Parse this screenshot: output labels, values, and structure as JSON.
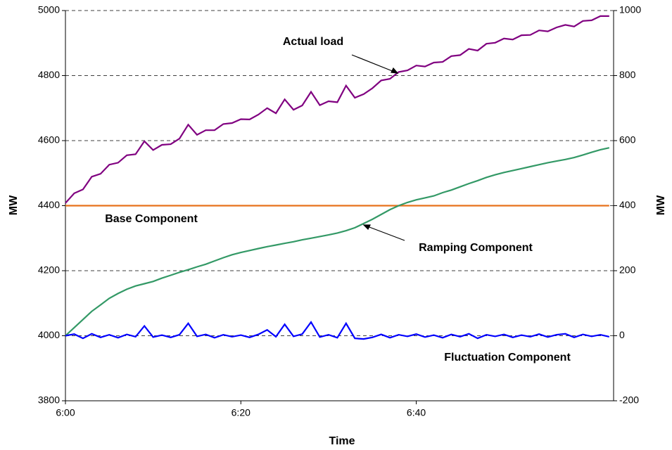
{
  "chart_data": {
    "type": "line",
    "x_label": "Time",
    "y_label": "MW",
    "y2_label": "MW",
    "x": [
      0,
      1,
      2,
      3,
      4,
      5,
      6,
      7,
      8,
      9,
      10,
      11,
      12,
      13,
      14,
      15,
      16,
      17,
      18,
      19,
      20,
      21,
      22,
      23,
      24,
      25,
      26,
      27,
      28,
      29,
      30,
      31,
      32,
      33,
      34,
      35,
      36,
      37,
      38,
      39,
      40,
      41,
      42,
      43,
      44,
      45,
      46,
      47,
      48,
      49,
      50,
      51,
      52,
      53,
      54,
      55,
      56,
      57,
      58,
      59,
      60,
      61,
      62
    ],
    "xlim": [
      0,
      62.5
    ],
    "xticks": [
      {
        "value": 0,
        "label": "6:00"
      },
      {
        "value": 20,
        "label": "6:20"
      },
      {
        "value": 40,
        "label": "6:40"
      }
    ],
    "ylim": [
      3800,
      5000
    ],
    "yticks": [
      3800,
      4000,
      4200,
      4400,
      4600,
      4800,
      5000
    ],
    "y2lim": [
      -200,
      1000
    ],
    "y2ticks": [
      -200,
      0,
      200,
      400,
      600,
      800,
      1000
    ],
    "grid": true,
    "series": [
      {
        "name": "Actual load",
        "color": "#800080",
        "values": [
          4408,
          4438,
          4450,
          4489,
          4498,
          4526,
          4532,
          4555,
          4558,
          4598,
          4571,
          4587,
          4589,
          4606,
          4649,
          4618,
          4632,
          4632,
          4651,
          4654,
          4666,
          4665,
          4680,
          4700,
          4684,
          4727,
          4695,
          4708,
          4750,
          4709,
          4721,
          4718,
          4769,
          4732,
          4743,
          4761,
          4785,
          4790,
          4811,
          4816,
          4831,
          4828,
          4840,
          4842,
          4860,
          4863,
          4882,
          4877,
          4898,
          4901,
          4914,
          4911,
          4924,
          4925,
          4939,
          4936,
          4948,
          4956,
          4951,
          4968,
          4970,
          4983,
          4983
        ]
      },
      {
        "name": "Base Component",
        "color": "#e8701a",
        "values": [
          4400,
          4400,
          4400,
          4400,
          4400,
          4400,
          4400,
          4400,
          4400,
          4400,
          4400,
          4400,
          4400,
          4400,
          4400,
          4400,
          4400,
          4400,
          4400,
          4400,
          4400,
          4400,
          4400,
          4400,
          4400,
          4400,
          4400,
          4400,
          4400,
          4400,
          4400,
          4400,
          4400,
          4400,
          4400,
          4400,
          4400,
          4400,
          4400,
          4400,
          4400,
          4400,
          4400,
          4400,
          4400,
          4400,
          4400,
          4400,
          4400,
          4400,
          4400,
          4400,
          4400,
          4400,
          4400,
          4400,
          4400,
          4400,
          4400,
          4400,
          4400,
          4400,
          4400
        ]
      },
      {
        "name": "Ramping Component",
        "color": "#339966",
        "axis": "y2",
        "values": [
          0,
          25,
          50,
          75,
          95,
          115,
          130,
          143,
          153,
          160,
          167,
          177,
          186,
          195,
          203,
          212,
          220,
          230,
          240,
          249,
          256,
          262,
          268,
          274,
          279,
          284,
          289,
          295,
          300,
          305,
          310,
          316,
          323,
          332,
          345,
          358,
          373,
          388,
          400,
          410,
          418,
          424,
          430,
          440,
          448,
          458,
          468,
          477,
          487,
          495,
          502,
          508,
          514,
          520,
          526,
          532,
          537,
          542,
          548,
          556,
          564,
          572,
          578
        ]
      },
      {
        "name": "Fluctuation Component",
        "color": "#0000ff",
        "axis": "y2",
        "values": [
          0,
          5,
          -8,
          6,
          -5,
          3,
          -6,
          4,
          -3,
          30,
          -4,
          2,
          -5,
          3,
          38,
          -2,
          4,
          -6,
          3,
          -3,
          2,
          -5,
          4,
          18,
          -3,
          35,
          -2,
          5,
          42,
          -4,
          3,
          -6,
          38,
          -8,
          -10,
          -5,
          4,
          -6,
          3,
          -2,
          5,
          -4,
          2,
          -6,
          4,
          -3,
          6,
          -8,
          3,
          -2,
          4,
          -5,
          2,
          -3,
          5,
          -4,
          3,
          6,
          -5,
          4,
          -2,
          3,
          -3
        ]
      }
    ]
  }
}
